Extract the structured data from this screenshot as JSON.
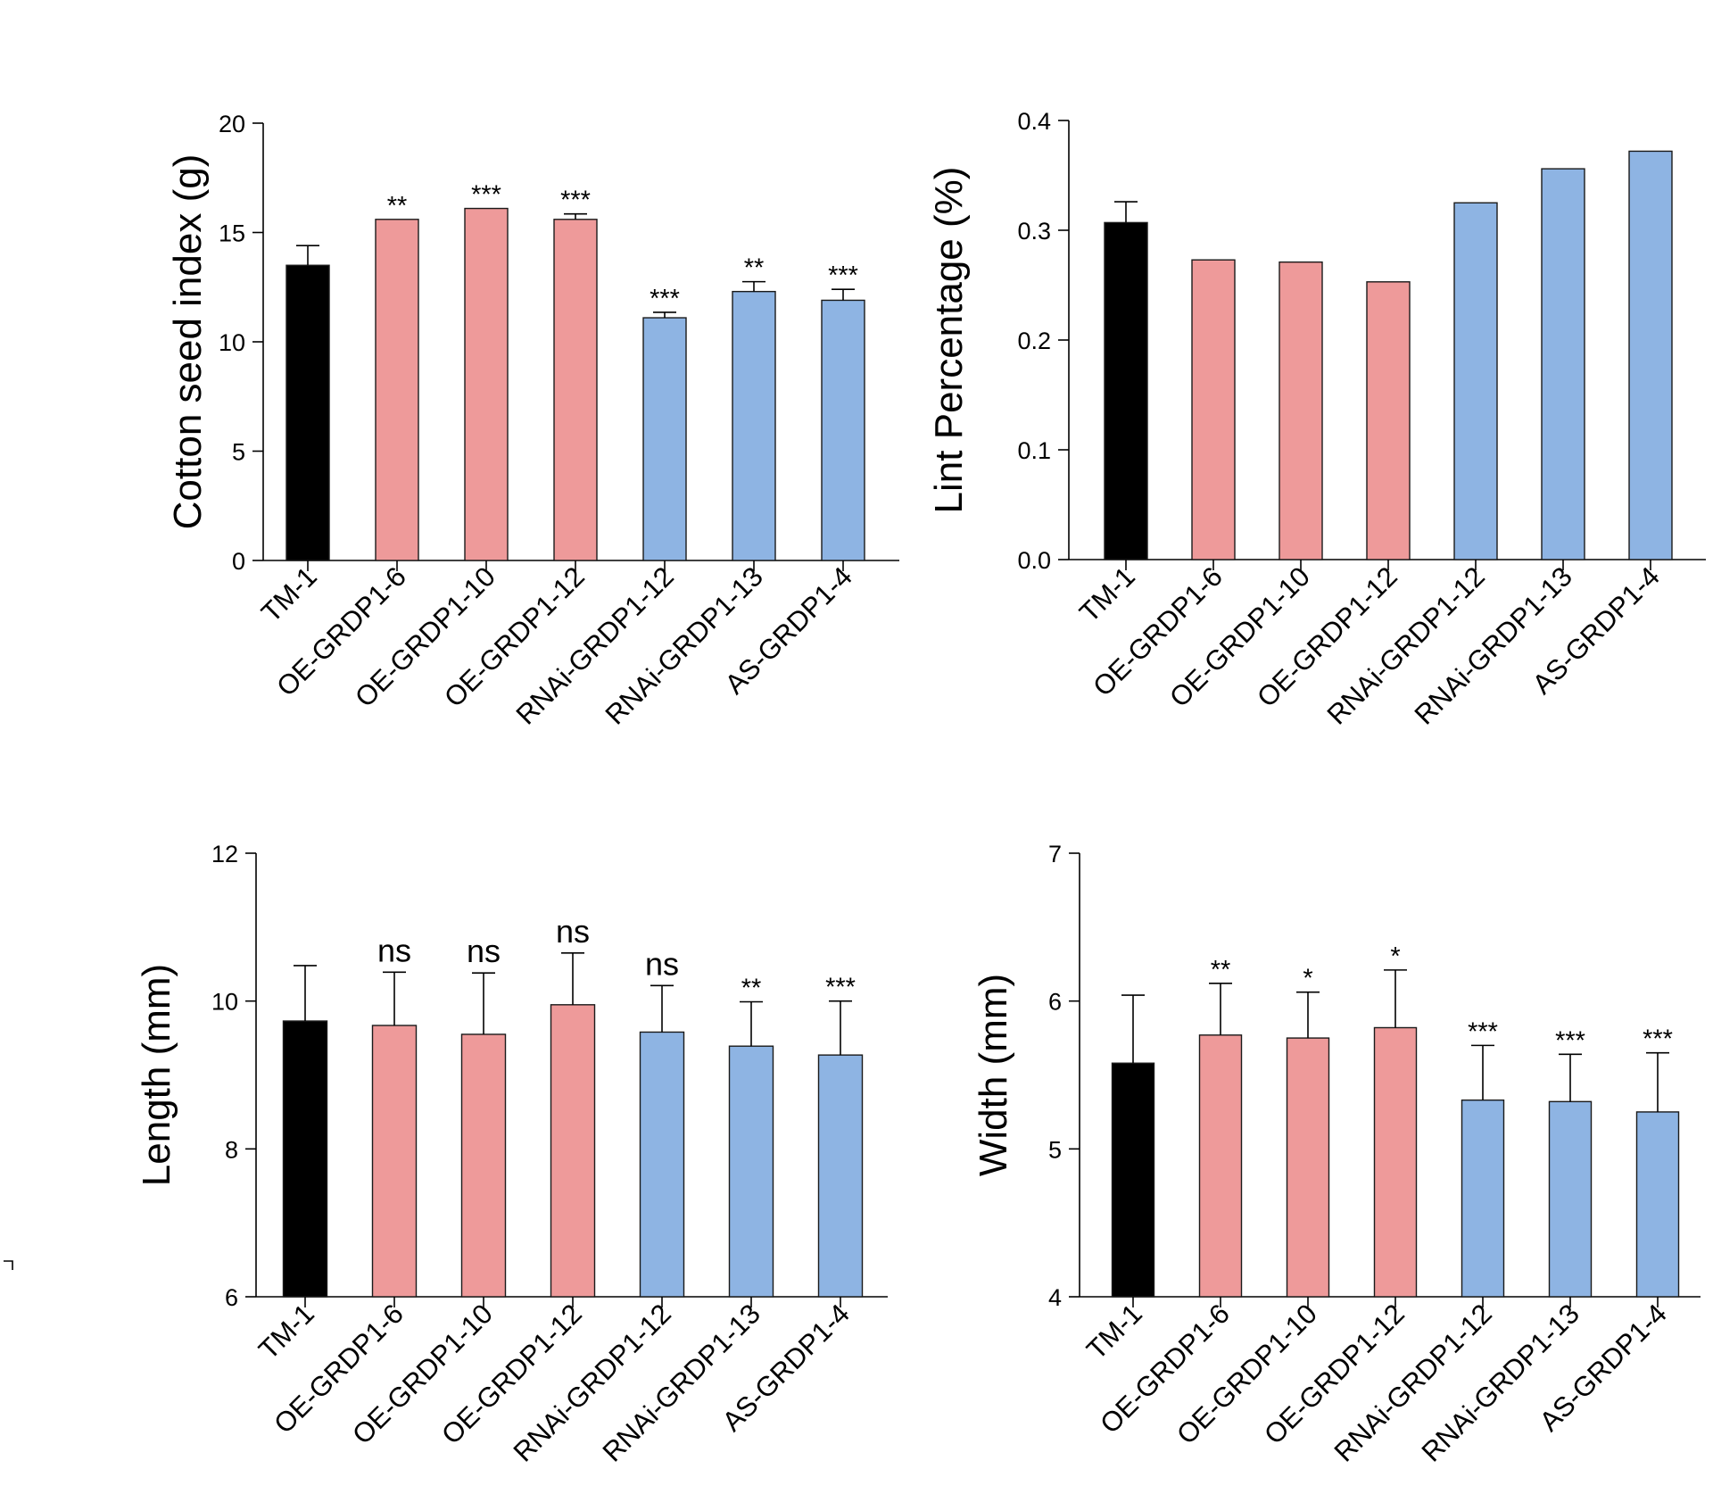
{
  "figure": {
    "colors": {
      "control": "#000000",
      "overexpression": "#ee9a9a",
      "knockdown": "#8eb4e3"
    }
  },
  "chart_data": [
    {
      "type": "bar",
      "ylabel": "Cotton seed index (g)",
      "categories": [
        "TM-1",
        "OE-GRDP1-6",
        "OE-GRDP1-10",
        "OE-GRDP1-12",
        "RNAi-GRDP1-12",
        "RNAi-GRDP1-13",
        "AS-GRDP1-4"
      ],
      "values": [
        13.5,
        15.6,
        16.1,
        15.6,
        11.1,
        12.3,
        11.9
      ],
      "errors": [
        0.9,
        0.0,
        0.0,
        0.25,
        0.25,
        0.45,
        0.5
      ],
      "significance": [
        "",
        "**",
        "***",
        "***",
        "***",
        "**",
        "***"
      ],
      "group_colors": [
        "control",
        "overexpression",
        "overexpression",
        "overexpression",
        "knockdown",
        "knockdown",
        "knockdown"
      ],
      "ylim": [
        0,
        20
      ],
      "yticks": [
        "0",
        "5",
        "10",
        "15",
        "20"
      ],
      "ytick_values": [
        0,
        5,
        10,
        15,
        20
      ]
    },
    {
      "type": "bar",
      "ylabel": "Lint Percentage (%)",
      "categories": [
        "TM-1",
        "OE-GRDP1-6",
        "OE-GRDP1-10",
        "OE-GRDP1-12",
        "RNAi-GRDP1-12",
        "RNAi-GRDP1-13",
        "AS-GRDP1-4"
      ],
      "values": [
        0.307,
        0.273,
        0.271,
        0.253,
        0.325,
        0.356,
        0.372
      ],
      "errors": [
        0.019,
        0,
        0,
        0,
        0,
        0,
        0
      ],
      "significance": [
        "",
        "",
        "",
        "",
        "",
        "",
        ""
      ],
      "group_colors": [
        "control",
        "overexpression",
        "overexpression",
        "overexpression",
        "knockdown",
        "knockdown",
        "knockdown"
      ],
      "ylim": [
        0,
        0.4
      ],
      "yticks": [
        "0.0",
        "0.1",
        "0.2",
        "0.3",
        "0.4"
      ],
      "ytick_values": [
        0,
        0.1,
        0.2,
        0.3,
        0.4
      ]
    },
    {
      "type": "bar",
      "ylabel": "Length (mm)",
      "categories": [
        "TM-1",
        "OE-GRDP1-6",
        "OE-GRDP1-10",
        "OE-GRDP1-12",
        "RNAi-GRDP1-12",
        "RNAi-GRDP1-13",
        "AS-GRDP1-4"
      ],
      "values": [
        9.73,
        9.67,
        9.55,
        9.95,
        9.58,
        9.39,
        9.27
      ],
      "errors": [
        0.75,
        0.72,
        0.83,
        0.7,
        0.63,
        0.6,
        0.73
      ],
      "significance": [
        "",
        "ns",
        "ns",
        "ns",
        "ns",
        "**",
        "***"
      ],
      "group_colors": [
        "control",
        "overexpression",
        "overexpression",
        "overexpression",
        "knockdown",
        "knockdown",
        "knockdown"
      ],
      "ylim": [
        6,
        12
      ],
      "yticks": [
        "6",
        "8",
        "10",
        "12"
      ],
      "ytick_values": [
        6,
        8,
        10,
        12
      ]
    },
    {
      "type": "bar",
      "ylabel": "Width (mm)",
      "categories": [
        "TM-1",
        "OE-GRDP1-6",
        "OE-GRDP1-10",
        "OE-GRDP1-12",
        "RNAi-GRDP1-12",
        "RNAi-GRDP1-13",
        "AS-GRDP1-4"
      ],
      "values": [
        5.58,
        5.77,
        5.75,
        5.82,
        5.33,
        5.32,
        5.25
      ],
      "errors": [
        0.46,
        0.35,
        0.31,
        0.39,
        0.37,
        0.32,
        0.4
      ],
      "significance": [
        "",
        "**",
        "*",
        "*",
        "***",
        "***",
        "***"
      ],
      "group_colors": [
        "control",
        "overexpression",
        "overexpression",
        "overexpression",
        "knockdown",
        "knockdown",
        "knockdown"
      ],
      "ylim": [
        4,
        7
      ],
      "yticks": [
        "4",
        "5",
        "6",
        "7"
      ],
      "ytick_values": [
        4,
        5,
        6,
        7
      ]
    }
  ]
}
